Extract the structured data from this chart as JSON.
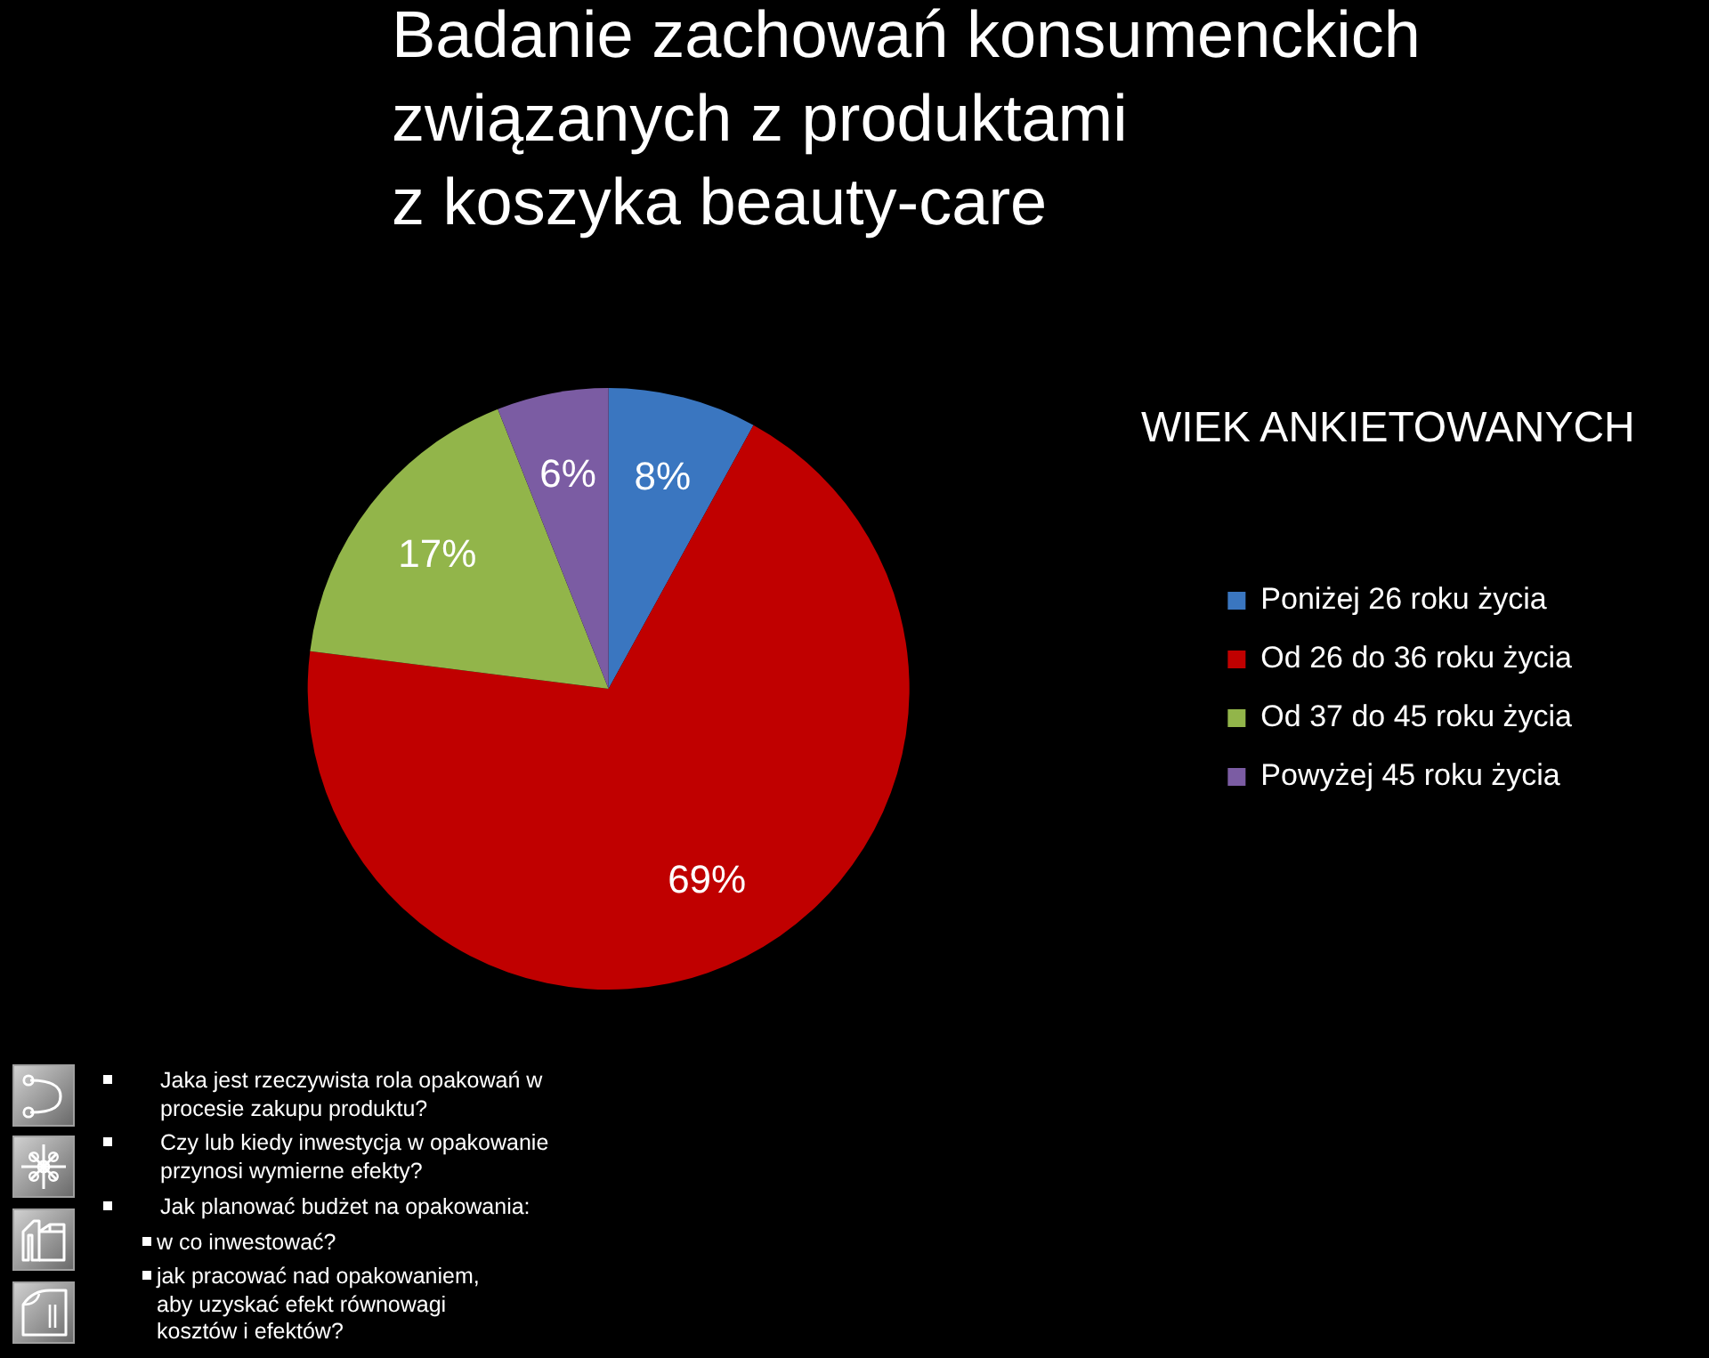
{
  "chart_data": {
    "type": "pie",
    "title": "Badanie zachowań konsumenckich\nzwiązanych z produktami\nz koszyka beauty-care",
    "subtitle": "WIEK ANKIETOWANYCH",
    "categories": [
      "Poniżej 26 roku życia",
      "Od 26 do 36 roku życia",
      "Od 37 do 45 roku życia",
      "Powyżej 45 roku życia"
    ],
    "values": [
      8,
      69,
      17,
      6
    ],
    "colors": [
      "#3a76c0",
      "#c00000",
      "#92b54a",
      "#7b5ca3"
    ],
    "value_labels": [
      "8%",
      "69%",
      "17%",
      "6%"
    ],
    "legend": "right",
    "annotations": [
      "Jaka jest rzeczywista rola opakowań w\nprocesie zakupu produktu?",
      "Czy lub kiedy inwestycja w opakowanie\nprzynosi wymierne efekty?",
      "Jak planować budżet na opakowania:",
      "w co inwestować?",
      "jak pracować nad opakowaniem,\naby uzyskać efekt równowagi\nkosztów i efektów?"
    ]
  }
}
